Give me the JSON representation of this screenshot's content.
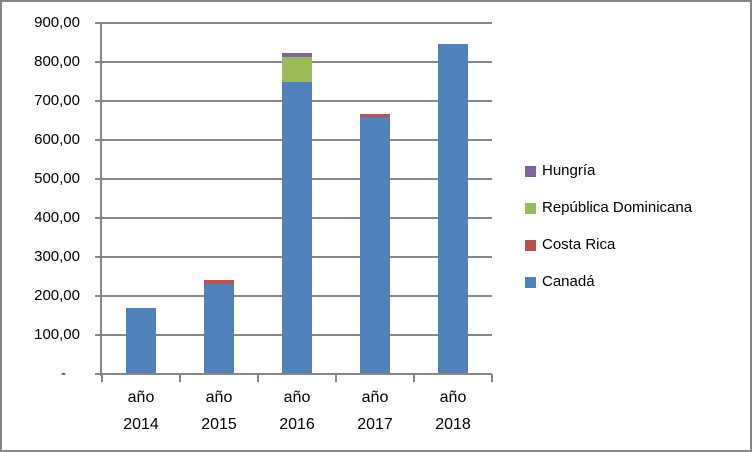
{
  "chart_data": {
    "type": "bar",
    "stacked": true,
    "title": "",
    "xlabel": "",
    "ylabel": "",
    "grid": true,
    "categories": [
      "año 2014",
      "año 2015",
      "año 2016",
      "año 2017",
      "año 2018"
    ],
    "series": [
      {
        "name": "Canadá",
        "color": "#4F81BD",
        "values": [
          170,
          230,
          750,
          660,
          845
        ]
      },
      {
        "name": "Costa Rica",
        "color": "#C0504D",
        "values": [
          0,
          10,
          0,
          8,
          0
        ]
      },
      {
        "name": "República Dominicana",
        "color": "#9BBB59",
        "values": [
          0,
          0,
          62,
          0,
          0
        ]
      },
      {
        "name": "Hungría",
        "color": "#8064A2",
        "values": [
          0,
          0,
          10,
          0,
          0
        ]
      }
    ],
    "legend": {
      "position": "right",
      "order": [
        "Hungría",
        "República Dominicana",
        "Costa Rica",
        "Canadá"
      ]
    },
    "y_axis": {
      "min": 0,
      "max": 900,
      "step": 100,
      "tick_labels": [
        "-",
        "100,00",
        "200,00",
        "300,00",
        "400,00",
        "500,00",
        "600,00",
        "700,00",
        "800,00",
        "900,00"
      ]
    }
  },
  "colors": {
    "gridline": "#878787",
    "axis": "#878787",
    "border": "#848484",
    "text": "#000000",
    "background": "#FFFFFF"
  }
}
